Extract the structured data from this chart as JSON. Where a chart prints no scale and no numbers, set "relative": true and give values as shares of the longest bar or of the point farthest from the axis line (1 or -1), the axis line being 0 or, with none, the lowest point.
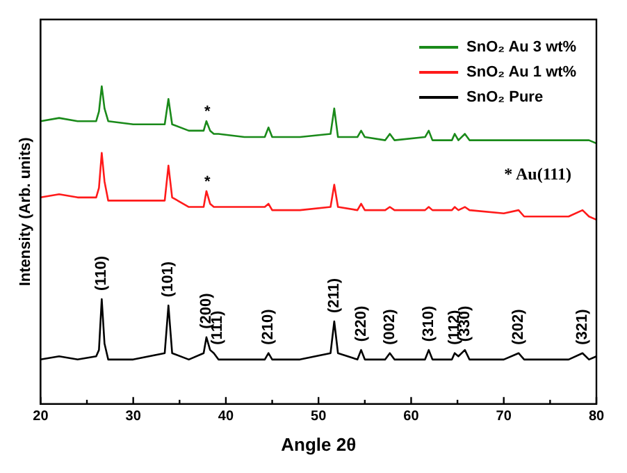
{
  "chart_data": {
    "type": "line",
    "relative": true,
    "xlabel": "Angle 2θ",
    "ylabel": "Intensity (Arb. units)",
    "xlim": [
      20,
      80
    ],
    "xticks": [
      20,
      {
        "value": 25,
        "label": null
      },
      30,
      {
        "value": 35,
        "label": null
      },
      40,
      {
        "value": 45,
        "label": null
      },
      50,
      {
        "value": 55,
        "label": null
      },
      60,
      {
        "value": 65,
        "label": null
      },
      70,
      {
        "value": 75,
        "label": null
      },
      80
    ],
    "x": [
      20,
      22,
      24,
      26,
      26.3,
      26.6,
      26.9,
      27.3,
      30,
      33.4,
      33.8,
      34.2,
      36,
      37.6,
      37.9,
      38.3,
      38.7,
      39.2,
      42,
      44.2,
      44.6,
      45,
      48,
      51.3,
      51.7,
      52.1,
      54.2,
      54.6,
      55,
      57.2,
      57.7,
      58.2,
      61.5,
      61.9,
      62.3,
      64.4,
      64.7,
      65.1,
      65.8,
      66.3,
      70,
      71.6,
      72.2,
      77,
      78.5,
      79.2,
      80
    ],
    "series": [
      {
        "name": "SnO₂ Au 3 wt%",
        "color": "#1a8a1a",
        "values": [
          0.89,
          0.9,
          0.89,
          0.89,
          0.92,
          1,
          0.93,
          0.89,
          0.88,
          0.88,
          0.96,
          0.88,
          0.86,
          0.86,
          0.89,
          0.86,
          0.85,
          0.85,
          0.84,
          0.84,
          0.87,
          0.84,
          0.84,
          0.85,
          0.93,
          0.84,
          0.84,
          0.86,
          0.84,
          0.83,
          0.85,
          0.83,
          0.84,
          0.86,
          0.83,
          0.83,
          0.85,
          0.83,
          0.85,
          0.83,
          0.83,
          0.83,
          0.83,
          0.83,
          0.83,
          0.83,
          0.82
        ]
      },
      {
        "name": "SnO₂ Au 1 wt%",
        "color": "#ff1a1a",
        "values": [
          0.65,
          0.66,
          0.65,
          0.65,
          0.68,
          0.79,
          0.7,
          0.64,
          0.64,
          0.64,
          0.75,
          0.65,
          0.62,
          0.62,
          0.67,
          0.63,
          0.62,
          0.62,
          0.62,
          0.62,
          0.63,
          0.61,
          0.61,
          0.62,
          0.69,
          0.62,
          0.61,
          0.63,
          0.61,
          0.61,
          0.62,
          0.61,
          0.61,
          0.62,
          0.61,
          0.61,
          0.62,
          0.61,
          0.62,
          0.61,
          0.6,
          0.61,
          0.59,
          0.59,
          0.61,
          0.59,
          0.58
        ]
      },
      {
        "name": "SnO₂ Pure",
        "color": "#000000",
        "values": [
          0.14,
          0.15,
          0.14,
          0.15,
          0.17,
          0.33,
          0.19,
          0.14,
          0.14,
          0.16,
          0.31,
          0.16,
          0.14,
          0.16,
          0.21,
          0.17,
          0.16,
          0.14,
          0.14,
          0.14,
          0.16,
          0.14,
          0.14,
          0.16,
          0.26,
          0.16,
          0.14,
          0.17,
          0.14,
          0.14,
          0.16,
          0.14,
          0.14,
          0.17,
          0.14,
          0.14,
          0.16,
          0.15,
          0.17,
          0.14,
          0.14,
          0.16,
          0.14,
          0.14,
          0.16,
          0.14,
          0.15
        ]
      }
    ],
    "marker": "none",
    "line_style": "solid",
    "grid": false,
    "legend": "top right",
    "annotations": [
      {
        "text": "(110)",
        "x": 26.6,
        "y": 0.33
      },
      {
        "text": "(101)",
        "x": 33.8,
        "y": 0.31
      },
      {
        "text": "(200)",
        "x": 37.9,
        "y": 0.21
      },
      {
        "text": "(111)",
        "x": 39.1,
        "y": 0.16
      },
      {
        "text": "(210)",
        "x": 44.6,
        "y": 0.16
      },
      {
        "text": "(211)",
        "x": 51.7,
        "y": 0.26
      },
      {
        "text": "(220)",
        "x": 54.6,
        "y": 0.17
      },
      {
        "text": "(002)",
        "x": 57.7,
        "y": 0.16
      },
      {
        "text": "(310)",
        "x": 61.9,
        "y": 0.17
      },
      {
        "text": "(112)",
        "x": 64.7,
        "y": 0.16
      },
      {
        "text": "(330)",
        "x": 65.8,
        "y": 0.17
      },
      {
        "text": "(202)",
        "x": 71.6,
        "y": 0.16
      },
      {
        "text": "(321)",
        "x": 78.5,
        "y": 0.16
      },
      {
        "text": "*",
        "x": 38,
        "y": 0.89
      },
      {
        "text": "*",
        "x": 38,
        "y": 0.67
      },
      "* Au(111)"
    ]
  }
}
